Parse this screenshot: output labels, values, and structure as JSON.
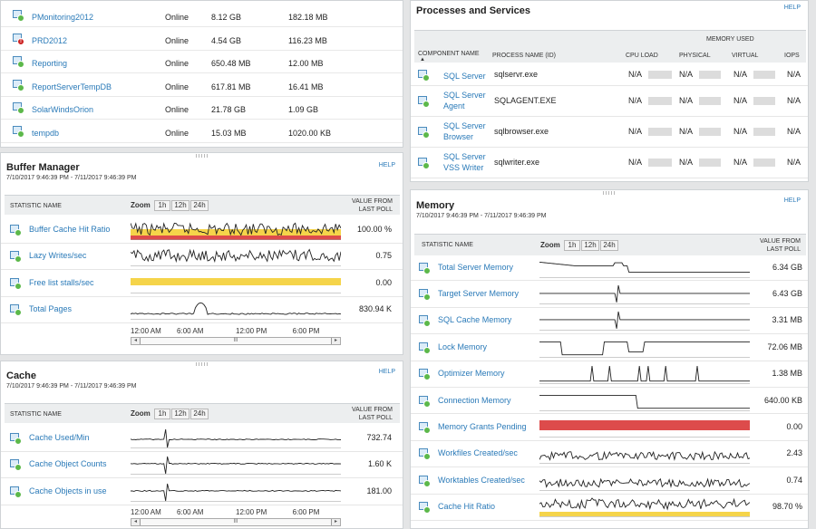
{
  "databases": {
    "rows": [
      {
        "name": "PMonitoring2012",
        "status": "Online",
        "size": "8.12 GB",
        "log": "182.18 MB",
        "alert": false
      },
      {
        "name": "PRD2012",
        "status": "Online",
        "size": "4.54 GB",
        "log": "116.23 MB",
        "alert": true
      },
      {
        "name": "Reporting",
        "status": "Online",
        "size": "650.48 MB",
        "log": "12.00 MB",
        "alert": false
      },
      {
        "name": "ReportServerTempDB",
        "status": "Online",
        "size": "617.81 MB",
        "log": "16.41 MB",
        "alert": false
      },
      {
        "name": "SolarWindsOrion",
        "status": "Online",
        "size": "21.78 GB",
        "log": "1.09 GB",
        "alert": false
      },
      {
        "name": "tempdb",
        "status": "Online",
        "size": "15.03 MB",
        "log": "1020.00 KB",
        "alert": false
      }
    ]
  },
  "common": {
    "help": "HELP",
    "statistic_name": "STATISTIC NAME",
    "zoom": "Zoom",
    "zoom_1h": "1h",
    "zoom_12h": "12h",
    "zoom_24h": "24h",
    "value_from": "VALUE FROM",
    "last_poll": "LAST POLL",
    "date_range": "7/10/2017 9:46:39 PM - 7/11/2017 9:46:39 PM",
    "axis": [
      "12:00 AM",
      "6:00 AM",
      "12:00 PM",
      "6:00 PM"
    ],
    "scroll_thumb": "III"
  },
  "buffer_manager": {
    "title": "Buffer Manager",
    "rows": [
      {
        "label": "Buffer Cache Hit Ratio",
        "value": "100.00 %"
      },
      {
        "label": "Lazy Writes/sec",
        "value": "0.75"
      },
      {
        "label": "Free list stalls/sec",
        "value": "0.00"
      },
      {
        "label": "Total Pages",
        "value": "830.94 K"
      }
    ]
  },
  "cache": {
    "title": "Cache",
    "rows": [
      {
        "label": "Cache Used/Min",
        "value": "732.74"
      },
      {
        "label": "Cache Object Counts",
        "value": "1.60 K"
      },
      {
        "label": "Cache Objects in use",
        "value": "181.00"
      }
    ]
  },
  "processes": {
    "title": "Processes and Services",
    "memory_used": "MEMORY USED",
    "headers": {
      "component": "COMPONENT NAME",
      "process": "PROCESS NAME (ID)",
      "cpu": "CPU LOAD",
      "physical": "PHYSICAL",
      "virtual": "VIRTUAL",
      "iops": "IOPS"
    },
    "rows": [
      {
        "name": "SQL Server",
        "name2": "",
        "process": "sqlservr.exe",
        "cpu": "N/A",
        "physical": "N/A",
        "virtual": "N/A",
        "iops": "N/A"
      },
      {
        "name": "SQL Server",
        "name2": "Agent",
        "process": "SQLAGENT.EXE",
        "cpu": "N/A",
        "physical": "N/A",
        "virtual": "N/A",
        "iops": "N/A"
      },
      {
        "name": "SQL Server",
        "name2": "Browser",
        "process": "sqlbrowser.exe",
        "cpu": "N/A",
        "physical": "N/A",
        "virtual": "N/A",
        "iops": "N/A"
      },
      {
        "name": "SQL Server",
        "name2": "VSS Writer",
        "process": "sqlwriter.exe",
        "cpu": "N/A",
        "physical": "N/A",
        "virtual": "N/A",
        "iops": "N/A"
      }
    ]
  },
  "memory": {
    "title": "Memory",
    "rows": [
      {
        "label": "Total Server Memory",
        "value": "6.34 GB"
      },
      {
        "label": "Target Server Memory",
        "value": "6.43 GB"
      },
      {
        "label": "SQL Cache Memory",
        "value": "3.31 MB"
      },
      {
        "label": "Lock Memory",
        "value": "72.06 MB"
      },
      {
        "label": "Optimizer Memory",
        "value": "1.38 MB"
      },
      {
        "label": "Connection Memory",
        "value": "640.00 KB"
      },
      {
        "label": "Memory Grants Pending",
        "value": "0.00"
      },
      {
        "label": "Workfiles Created/sec",
        "value": "2.43"
      },
      {
        "label": "Worktables Created/sec",
        "value": "0.74"
      },
      {
        "label": "Cache Hit Ratio",
        "value": "98.70 %"
      }
    ]
  },
  "colors": {
    "link": "#2a7ab8",
    "threshold_warning": "#f5d44a",
    "threshold_critical": "#dd4b4b",
    "status_up": "#5cb84a",
    "status_down": "#cc2222"
  }
}
